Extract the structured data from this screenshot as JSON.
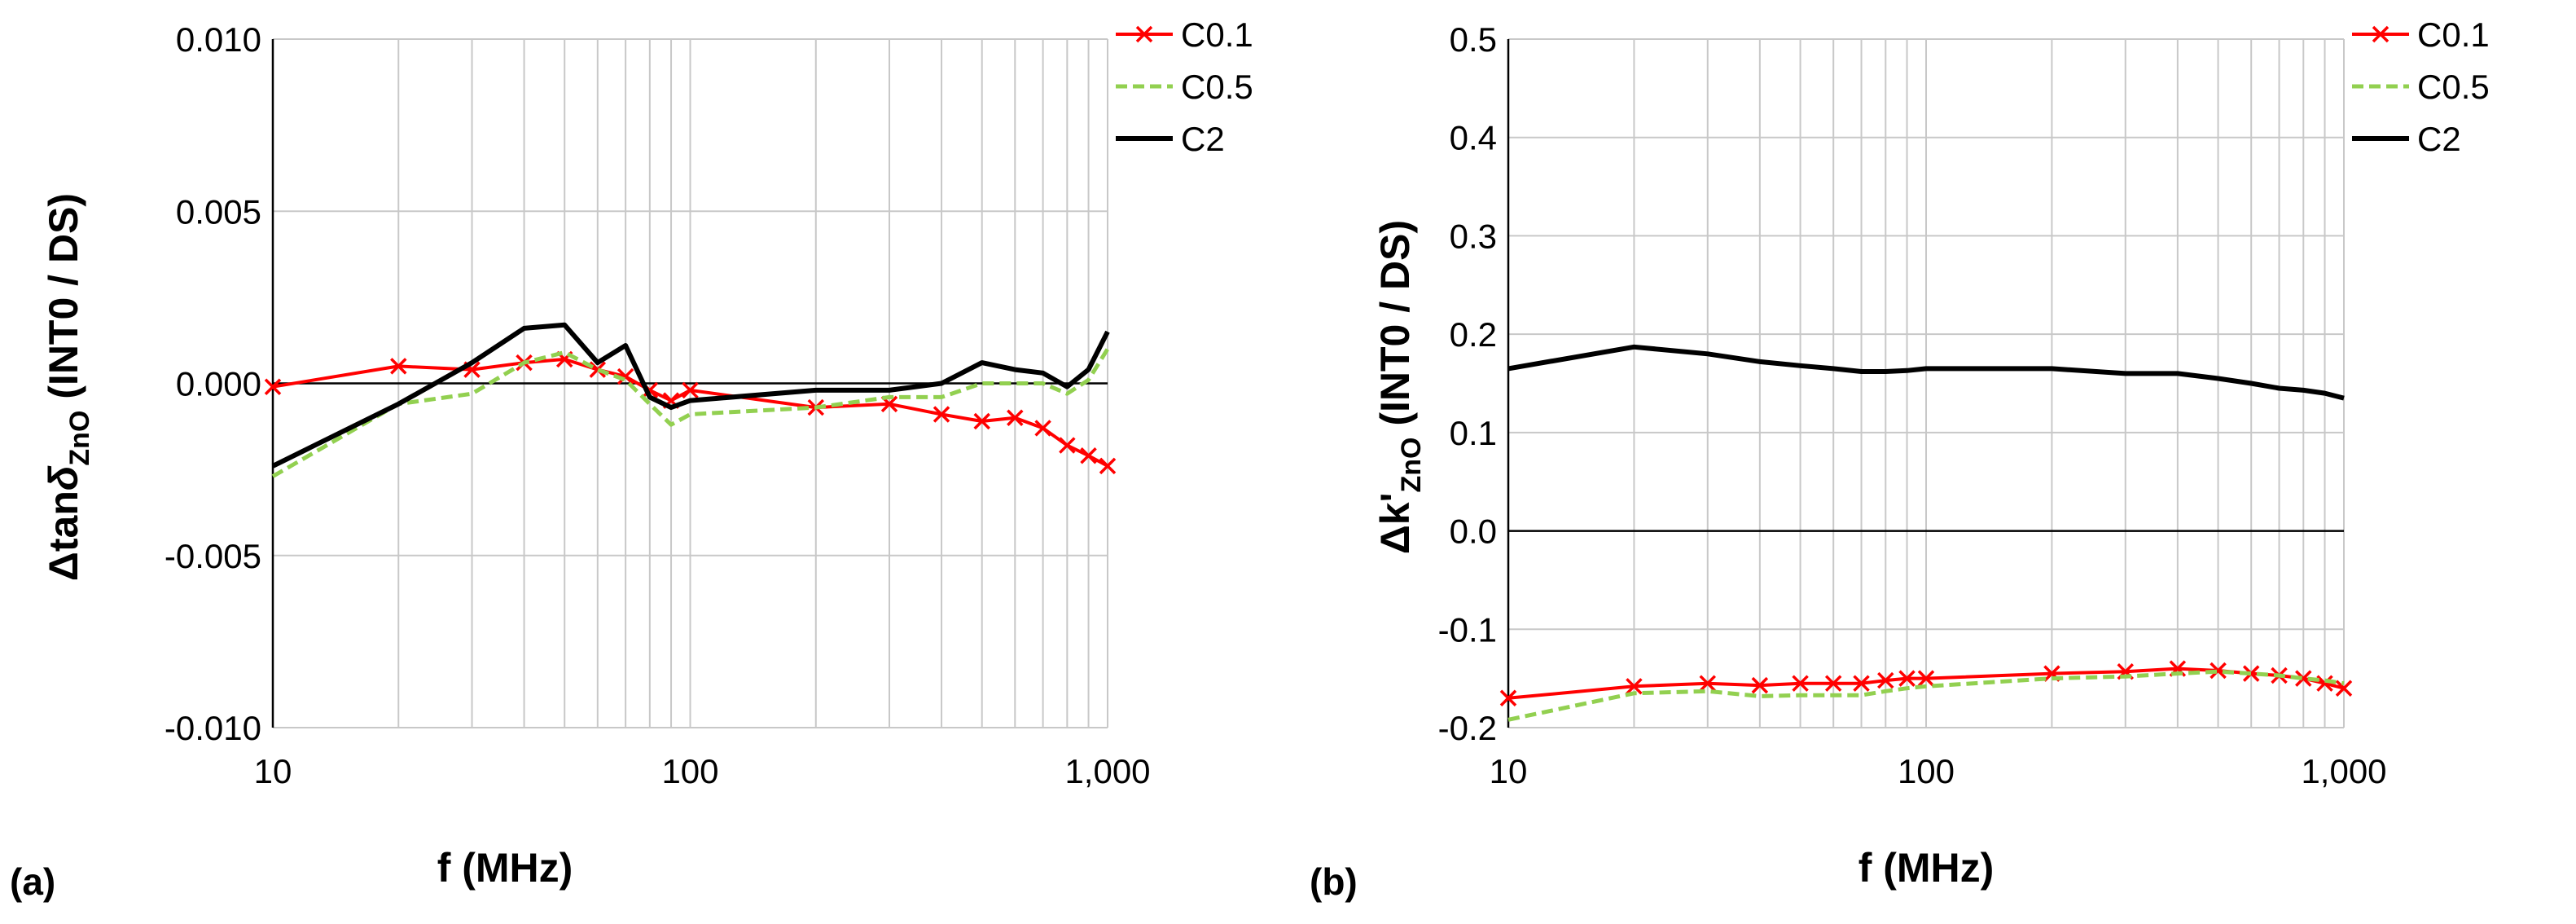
{
  "chart_data": [
    {
      "type": "line",
      "panel_label": "(a)",
      "xlabel": "f (MHz)",
      "ylabel": {
        "main": "Δtan",
        "delta": "δ",
        "sub": "ZnO",
        "tail": " (INT0 / DS)"
      },
      "xscale": "log",
      "xlim": [
        10,
        1000
      ],
      "ylim": [
        -0.01,
        0.01
      ],
      "xticks": [
        10,
        100,
        1000
      ],
      "xtick_labels": [
        "10",
        "100",
        "1,000"
      ],
      "yticks": [
        -0.01,
        -0.005,
        0.0,
        0.005,
        0.01
      ],
      "ytick_labels": [
        "-0.010",
        "-0.005",
        "0.000",
        "0.005",
        "0.010"
      ],
      "legend_position": "top-right",
      "series": [
        {
          "name": "C0.1",
          "color": "#ff0000",
          "style": "solid-x",
          "x": [
            10,
            20,
            30,
            40,
            50,
            60,
            70,
            80,
            90,
            100,
            200,
            300,
            400,
            500,
            600,
            700,
            800,
            900,
            1000
          ],
          "y": [
            -0.0001,
            0.0005,
            0.0004,
            0.0006,
            0.0007,
            0.0004,
            0.0002,
            -0.0002,
            -0.0005,
            -0.0002,
            -0.0007,
            -0.0006,
            -0.0009,
            -0.0011,
            -0.001,
            -0.0013,
            -0.0018,
            -0.0021,
            -0.0024
          ]
        },
        {
          "name": "C0.5",
          "color": "#92d050",
          "style": "dashed",
          "x": [
            10,
            20,
            30,
            40,
            50,
            60,
            70,
            80,
            90,
            100,
            200,
            300,
            400,
            500,
            600,
            700,
            800,
            900,
            1000
          ],
          "y": [
            -0.0027,
            -0.0006,
            -0.0003,
            0.0006,
            0.0009,
            0.0004,
            0.0001,
            -0.0006,
            -0.0012,
            -0.0009,
            -0.0007,
            -0.0004,
            -0.0004,
            0.0,
            0.0,
            0.0,
            -0.0003,
            0.0001,
            0.001
          ]
        },
        {
          "name": "C2",
          "color": "#000000",
          "style": "solid",
          "x": [
            10,
            20,
            30,
            40,
            50,
            60,
            70,
            80,
            90,
            100,
            200,
            300,
            400,
            500,
            600,
            700,
            800,
            900,
            1000
          ],
          "y": [
            -0.0024,
            -0.0006,
            0.0006,
            0.0016,
            0.0017,
            0.0006,
            0.0011,
            -0.0004,
            -0.0007,
            -0.0005,
            -0.0002,
            -0.0002,
            0.0,
            0.0006,
            0.0004,
            0.0003,
            -0.0001,
            0.0004,
            0.0015
          ]
        }
      ]
    },
    {
      "type": "line",
      "panel_label": "(b)",
      "xlabel": "f (MHz)",
      "ylabel": {
        "main": "Δk'",
        "sub": "ZnO",
        "tail": " (INT0 / DS)"
      },
      "xscale": "log",
      "xlim": [
        10,
        1000
      ],
      "ylim": [
        -0.2,
        0.5
      ],
      "xticks": [
        10,
        100,
        1000
      ],
      "xtick_labels": [
        "10",
        "100",
        "1,000"
      ],
      "yticks": [
        -0.2,
        -0.1,
        0.0,
        0.1,
        0.2,
        0.3,
        0.4,
        0.5
      ],
      "ytick_labels": [
        "-0.2",
        "-0.1",
        "0.0",
        "0.1",
        "0.2",
        "0.3",
        "0.4",
        "0.5"
      ],
      "legend_position": "top-right",
      "series": [
        {
          "name": "C0.1",
          "color": "#ff0000",
          "style": "solid-x",
          "x": [
            10,
            20,
            30,
            40,
            50,
            60,
            70,
            80,
            90,
            100,
            200,
            300,
            400,
            500,
            600,
            700,
            800,
            900,
            1000
          ],
          "y": [
            -0.17,
            -0.158,
            -0.155,
            -0.157,
            -0.155,
            -0.155,
            -0.155,
            -0.152,
            -0.15,
            -0.15,
            -0.145,
            -0.143,
            -0.14,
            -0.142,
            -0.145,
            -0.147,
            -0.15,
            -0.155,
            -0.16
          ]
        },
        {
          "name": "C0.5",
          "color": "#92d050",
          "style": "dashed",
          "x": [
            10,
            20,
            30,
            40,
            50,
            60,
            70,
            80,
            90,
            100,
            200,
            300,
            400,
            500,
            600,
            700,
            800,
            900,
            1000
          ],
          "y": [
            -0.192,
            -0.165,
            -0.163,
            -0.168,
            -0.167,
            -0.167,
            -0.167,
            -0.163,
            -0.16,
            -0.158,
            -0.15,
            -0.148,
            -0.145,
            -0.143,
            -0.145,
            -0.147,
            -0.15,
            -0.152,
            -0.155
          ]
        },
        {
          "name": "C2",
          "color": "#000000",
          "style": "solid",
          "x": [
            10,
            20,
            30,
            40,
            50,
            60,
            70,
            80,
            90,
            100,
            200,
            300,
            400,
            500,
            600,
            700,
            800,
            900,
            1000
          ],
          "y": [
            0.165,
            0.187,
            0.18,
            0.172,
            0.168,
            0.165,
            0.162,
            0.162,
            0.163,
            0.165,
            0.165,
            0.16,
            0.16,
            0.155,
            0.15,
            0.145,
            0.143,
            0.14,
            0.135
          ]
        }
      ]
    }
  ]
}
